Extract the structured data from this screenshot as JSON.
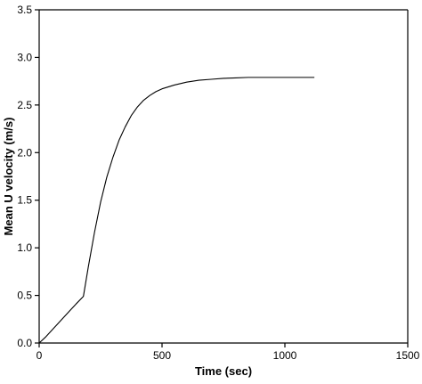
{
  "chart_data": {
    "type": "line",
    "title": "",
    "xlabel": "Time (sec)",
    "ylabel": "Mean U velocity (m/s)",
    "xlim": [
      0,
      1500
    ],
    "ylim": [
      0,
      3.5
    ],
    "xticks": [
      0,
      500,
      1000,
      1500
    ],
    "xtick_labels": [
      "0",
      "500",
      "1000",
      "1500"
    ],
    "yticks": [
      0,
      0.5,
      1.0,
      1.5,
      2.0,
      2.5,
      3.0,
      3.5
    ],
    "ytick_labels": [
      "0.0",
      "0.5",
      "1.0",
      "1.5",
      "2.0",
      "2.5",
      "3.0",
      "3.5"
    ],
    "grid": false,
    "legend": "none",
    "colors": {
      "line": "#000000",
      "axis": "#000000"
    },
    "series": [
      {
        "x": [
          0,
          25,
          50,
          75,
          100,
          125,
          150,
          180,
          200,
          225,
          250,
          275,
          300,
          325,
          350,
          375,
          400,
          425,
          450,
          475,
          500,
          550,
          600,
          650,
          700,
          750,
          800,
          850,
          900,
          950,
          1000,
          1050,
          1100,
          1120
        ],
        "y": [
          0.0,
          0.06,
          0.13,
          0.2,
          0.27,
          0.34,
          0.41,
          0.49,
          0.8,
          1.16,
          1.48,
          1.74,
          1.95,
          2.13,
          2.27,
          2.39,
          2.48,
          2.55,
          2.6,
          2.64,
          2.67,
          2.71,
          2.74,
          2.76,
          2.77,
          2.78,
          2.785,
          2.79,
          2.79,
          2.79,
          2.79,
          2.79,
          2.79,
          2.79
        ]
      }
    ]
  }
}
